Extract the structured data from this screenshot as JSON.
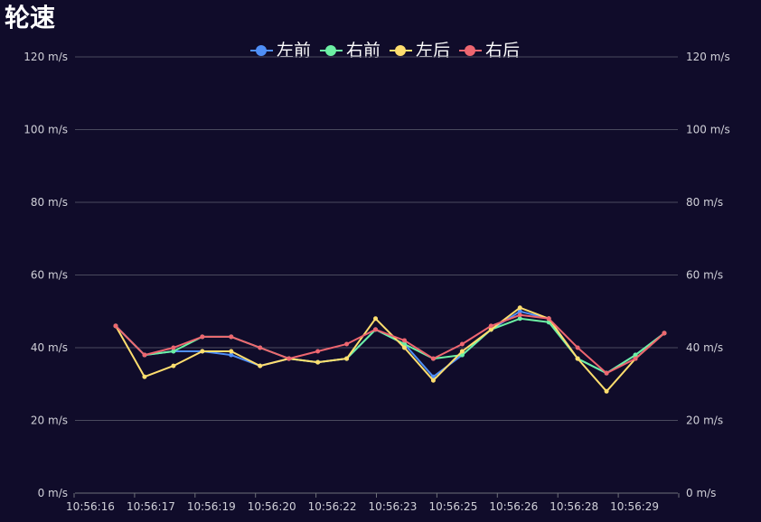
{
  "chart_data": {
    "type": "line",
    "title": "轮速",
    "x": [
      "10:56:16",
      "10:56:17",
      "10:56:17",
      "10:56:18",
      "10:56:19",
      "10:56:19",
      "10:56:20",
      "10:56:21",
      "10:56:22",
      "10:56:22",
      "10:56:23",
      "10:56:24",
      "10:56:25",
      "10:56:25",
      "10:56:26",
      "10:56:27",
      "10:56:28",
      "10:56:28",
      "10:56:29",
      "10:56:30"
    ],
    "x_tick_labels": [
      "10:56:16",
      "10:56:17",
      "10:56:19",
      "10:56:20",
      "10:56:22",
      "10:56:23",
      "10:56:25",
      "10:56:26",
      "10:56:28",
      "10:56:29"
    ],
    "y_tick_labels": [
      "0 m/s",
      "20 m/s",
      "40 m/s",
      "60 m/s",
      "80 m/s",
      "100 m/s",
      "120 m/s"
    ],
    "ylim": [
      0,
      120
    ],
    "y_unit": "m/s",
    "grid": true,
    "legend_position": "top-center",
    "series": [
      {
        "name": "左前",
        "color": "#4f8ff7",
        "values": [
          46,
          38,
          39,
          39,
          38,
          35,
          37,
          36,
          37,
          45,
          41,
          32,
          38,
          45,
          50,
          48,
          37,
          33,
          38,
          44
        ]
      },
      {
        "name": "右前",
        "color": "#6cf0a4",
        "values": [
          46,
          38,
          39,
          43,
          43,
          40,
          37,
          36,
          37,
          45,
          41,
          37,
          38,
          45,
          48,
          47,
          37,
          33,
          38,
          44
        ]
      },
      {
        "name": "左后",
        "color": "#ffde6e",
        "values": [
          46,
          32,
          35,
          39,
          39,
          35,
          37,
          36,
          37,
          48,
          40,
          31,
          39,
          45,
          51,
          48,
          37,
          28,
          37,
          44
        ]
      },
      {
        "name": "右后",
        "color": "#ee6670",
        "values": [
          46,
          38,
          40,
          43,
          43,
          40,
          37,
          39,
          41,
          45,
          42,
          37,
          41,
          46,
          49,
          48,
          40,
          33,
          37,
          44
        ]
      }
    ]
  }
}
